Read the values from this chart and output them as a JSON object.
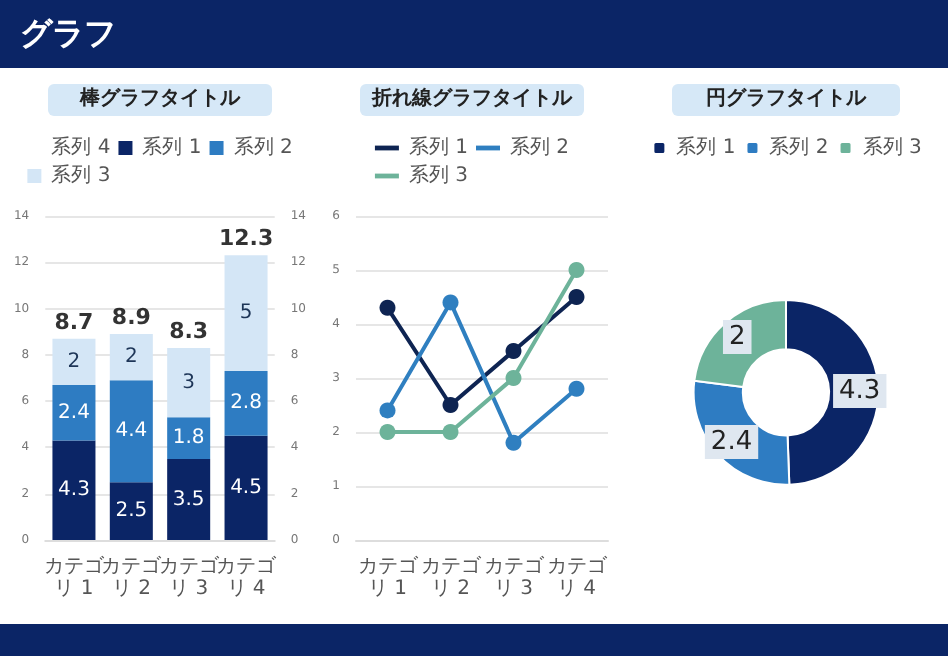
{
  "chart_data": [
    {
      "type": "other",
      "title": "グラフ"
    },
    {
      "type": "bar",
      "title": "棒グラフタイトル",
      "stacked": true,
      "categories": [
        "カテゴリ 1",
        "カテゴリ 2",
        "カテゴリ 3",
        "カテゴリ 4"
      ],
      "series": [
        {
          "name": "系列 4",
          "type": "scatter",
          "marker": "none",
          "values": [
            null,
            null,
            null,
            null
          ]
        },
        {
          "name": "系列 1",
          "color": "#0b2566",
          "values": [
            4.3,
            2.5,
            3.5,
            4.5
          ]
        },
        {
          "name": "系列 2",
          "color": "#2e7cc2",
          "values": [
            2.4,
            4.4,
            1.8,
            2.8
          ]
        },
        {
          "name": "系列 3",
          "color": "#d4e6f6",
          "values": [
            2,
            2,
            3,
            5
          ]
        }
      ],
      "ylim": [
        0,
        14
      ],
      "yticks": [
        0,
        2,
        4,
        6,
        8,
        10,
        12,
        14
      ],
      "y2lim": [
        0,
        14
      ],
      "y2ticks": [
        0,
        2,
        4,
        6,
        8,
        10,
        12,
        14
      ],
      "totals": [
        "8.7",
        "8.9",
        "8.3",
        "12.3"
      ],
      "data_labels": true,
      "legend": "top",
      "grid": "y"
    },
    {
      "type": "line",
      "title": "折れ線グラフタイトル",
      "categories": [
        "カテゴリ 1",
        "カテゴリ 2",
        "カテゴリ 3",
        "カテゴリ 4"
      ],
      "series": [
        {
          "name": "系列 1",
          "color": "#0e2452",
          "values": [
            4.3,
            2.5,
            3.5,
            4.5
          ]
        },
        {
          "name": "系列 2",
          "color": "#2f7fc0",
          "values": [
            2.4,
            4.4,
            1.8,
            2.8
          ]
        },
        {
          "name": "系列 3",
          "color": "#6db39a",
          "values": [
            2,
            2,
            3,
            5
          ]
        }
      ],
      "ylim": [
        0,
        6
      ],
      "yticks": [
        0,
        1,
        2,
        3,
        4,
        5,
        6
      ],
      "marker": "circle",
      "legend": "top",
      "grid": "y"
    },
    {
      "type": "donut",
      "title": "円グラフタイトル",
      "categories": [
        "系列 1",
        "系列 2",
        "系列 3"
      ],
      "values": [
        4.3,
        2.4,
        2
      ],
      "colors": [
        "#0b2566",
        "#2e7cc2",
        "#6db39a"
      ],
      "data_labels": true,
      "legend": "top"
    }
  ]
}
